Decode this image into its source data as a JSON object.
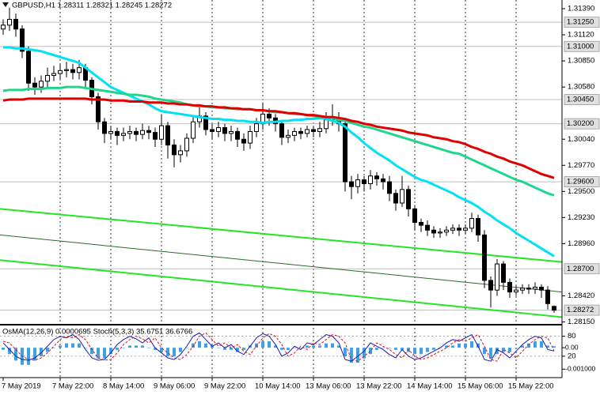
{
  "chart_data": [
    {
      "type": "candlestick",
      "title": "GBPUSD,H1  1.28311 1.28321 1.28245 1.28272",
      "categories": [
        "7 May 2019",
        null,
        null,
        null,
        null,
        null,
        null,
        null,
        null,
        "7 May 22:00",
        null,
        null,
        null,
        null,
        null,
        null,
        null,
        "8 May 14:00",
        null,
        null,
        null,
        null,
        null,
        null,
        null,
        "9 May 06:00",
        null,
        null,
        null,
        null,
        null,
        null,
        null,
        "9 May 22:00",
        null,
        null,
        null,
        null,
        null,
        null,
        null,
        "10 May 14:00",
        null,
        null,
        null,
        null,
        null,
        null,
        null,
        "13 May 06:00",
        null,
        null,
        null,
        null,
        null,
        null,
        null,
        "13 May 22:00",
        null,
        null,
        null,
        null,
        null,
        null,
        null,
        "14 May 14:00",
        null,
        null,
        null,
        null,
        null,
        null,
        null,
        "15 May 06:00",
        null,
        null,
        null,
        null,
        null,
        null,
        null,
        "15 May 22:00",
        null,
        null,
        null,
        null,
        null,
        null
      ],
      "open": [
        1.3118,
        1.3122,
        1.3128,
        1.3118,
        1.3095,
        1.3062,
        1.3058,
        1.3064,
        1.307,
        1.3072,
        1.3075,
        1.3076,
        1.3073,
        1.3078,
        1.3065,
        1.3048,
        1.3022,
        1.301,
        1.3012,
        1.3008,
        1.301,
        1.3012,
        1.3009,
        1.3013,
        1.3011,
        1.3004,
        1.3018,
        1.2998,
        1.2988,
        1.2992,
        1.3005,
        1.3022,
        1.3028,
        1.3014,
        1.3012,
        1.3016,
        1.301,
        1.3012,
        1.3004,
        1.3,
        1.3012,
        1.302,
        1.303,
        1.3026,
        1.302,
        1.3006,
        1.3008,
        1.3012,
        1.301,
        1.3014,
        1.3012,
        1.3015,
        1.3024,
        1.3026,
        1.302,
        1.296,
        1.2955,
        1.2962,
        1.2958,
        1.2966,
        1.2963,
        1.296,
        1.2948,
        1.2938,
        1.2952,
        1.2932,
        1.2918,
        1.2915,
        1.291,
        1.2907,
        1.2908,
        1.291,
        1.2912,
        1.291,
        1.2912,
        1.2922,
        1.2905,
        1.2858,
        1.2848,
        1.2875,
        1.2856,
        1.2846,
        1.2848,
        1.285,
        1.2849,
        1.2851,
        1.2848,
        1.28311
      ],
      "high": [
        1.3128,
        1.314,
        1.3134,
        1.3122,
        1.31,
        1.3068,
        1.307,
        1.3078,
        1.308,
        1.3082,
        1.3084,
        1.3082,
        1.3086,
        1.3082,
        1.3068,
        1.3052,
        1.3026,
        1.3018,
        1.3016,
        1.3016,
        1.3018,
        1.3016,
        1.302,
        1.3018,
        1.3016,
        1.303,
        1.3022,
        1.3004,
        1.2998,
        1.301,
        1.3028,
        1.3038,
        1.3032,
        1.302,
        1.3022,
        1.302,
        1.3018,
        1.3016,
        1.301,
        1.3018,
        1.3026,
        1.3042,
        1.3036,
        1.303,
        1.3024,
        1.3014,
        1.3016,
        1.3016,
        1.3018,
        1.3018,
        1.3022,
        1.3032,
        1.304,
        1.3032,
        1.3024,
        1.2966,
        1.2968,
        1.2966,
        1.2972,
        1.297,
        1.2968,
        1.2966,
        1.2952,
        1.2966,
        1.2956,
        1.2936,
        1.2922,
        1.292,
        1.2914,
        1.2912,
        1.2914,
        1.2916,
        1.2916,
        1.2916,
        1.2928,
        1.2926,
        1.291,
        1.2862,
        1.288,
        1.2878,
        1.286,
        1.2852,
        1.2854,
        1.2854,
        1.2856,
        1.2854,
        1.2852,
        1.28321
      ],
      "low": [
        1.3112,
        1.3116,
        1.311,
        1.3088,
        1.3054,
        1.305,
        1.3052,
        1.3058,
        1.3064,
        1.3066,
        1.3068,
        1.3066,
        1.3066,
        1.3058,
        1.304,
        1.3014,
        1.3,
        1.3004,
        1.2998,
        1.3002,
        1.3004,
        1.3002,
        1.3004,
        1.3004,
        1.2996,
        1.2998,
        1.2984,
        1.2975,
        1.298,
        1.2986,
        1.3,
        1.3016,
        1.3008,
        1.3004,
        1.3006,
        1.3002,
        1.3002,
        1.2996,
        1.2992,
        1.2994,
        1.3006,
        1.3014,
        1.3018,
        1.3012,
        1.2998,
        1.3,
        1.3002,
        1.3004,
        1.3006,
        1.3006,
        1.3006,
        1.301,
        1.3018,
        1.3012,
        1.295,
        1.2942,
        1.2948,
        1.295,
        1.2952,
        1.2956,
        1.2952,
        1.294,
        1.293,
        1.2934,
        1.2924,
        1.291,
        1.2908,
        1.2904,
        1.2902,
        1.2902,
        1.2904,
        1.2906,
        1.2904,
        1.2906,
        1.2908,
        1.2898,
        1.285,
        1.283,
        1.2842,
        1.2848,
        1.284,
        1.2842,
        1.2844,
        1.2844,
        1.2844,
        1.284,
        1.2828,
        1.28245
      ],
      "close": [
        1.3122,
        1.3128,
        1.3118,
        1.3095,
        1.3062,
        1.3058,
        1.3064,
        1.307,
        1.3072,
        1.3075,
        1.3076,
        1.3073,
        1.3078,
        1.3065,
        1.3048,
        1.3022,
        1.301,
        1.3012,
        1.3008,
        1.301,
        1.3012,
        1.3009,
        1.3013,
        1.3011,
        1.3004,
        1.3018,
        1.2998,
        1.2988,
        1.2992,
        1.3005,
        1.3022,
        1.3028,
        1.3014,
        1.3012,
        1.3016,
        1.301,
        1.3012,
        1.3004,
        1.3,
        1.3012,
        1.302,
        1.303,
        1.3026,
        1.302,
        1.3006,
        1.3008,
        1.3012,
        1.301,
        1.3014,
        1.3012,
        1.3015,
        1.3024,
        1.3026,
        1.302,
        1.296,
        1.2955,
        1.2962,
        1.2958,
        1.2966,
        1.2963,
        1.296,
        1.2948,
        1.2938,
        1.2952,
        1.2932,
        1.2918,
        1.2915,
        1.291,
        1.2907,
        1.2908,
        1.291,
        1.2912,
        1.291,
        1.2912,
        1.2922,
        1.2905,
        1.2858,
        1.2848,
        1.2875,
        1.2856,
        1.2846,
        1.2848,
        1.285,
        1.2849,
        1.2851,
        1.2848,
        1.2834,
        1.28272
      ],
      "series": [
        {
          "color": "#00e1f5",
          "values": [
            1.3099,
            1.3099,
            1.3098,
            1.3098,
            1.3097,
            1.3096,
            1.3095,
            1.3093,
            1.3091,
            1.3089,
            1.3087,
            1.3085,
            1.3083,
            1.3078,
            1.3073,
            1.3068,
            1.3063,
            1.3058,
            1.3055,
            1.3052,
            1.3049,
            1.3046,
            1.3043,
            1.304,
            1.3036,
            1.3033,
            1.3032,
            1.3031,
            1.303,
            1.3029,
            1.3028,
            1.3027,
            1.3026,
            1.3025,
            1.3025,
            1.3024,
            1.3024,
            1.3023,
            1.3023,
            1.3022,
            1.3022,
            1.3021,
            1.3022,
            1.3022,
            1.3023,
            1.3023,
            1.3024,
            1.3024,
            1.3025,
            1.3025,
            1.3026,
            1.3025,
            1.3023,
            1.3021,
            1.3017,
            1.3011,
            1.3006,
            1.3,
            1.2995,
            1.299,
            1.2986,
            1.2982,
            1.2977,
            1.2973,
            1.2969,
            1.2965,
            1.2962,
            1.296,
            1.2957,
            1.2954,
            1.2951,
            1.2948,
            1.2944,
            1.2941,
            1.2938,
            1.2934,
            1.2929,
            1.2925,
            1.292,
            1.2916,
            1.2912,
            1.2907,
            1.2903,
            1.2899,
            1.2895,
            1.2891,
            1.2887,
            1.2883
          ]
        },
        {
          "color": "#1ed68e",
          "values": [
            1.3054,
            1.3055,
            1.3055,
            1.3055,
            1.3056,
            1.3056,
            1.3056,
            1.3057,
            1.3057,
            1.3057,
            1.3058,
            1.3058,
            1.3058,
            1.3057,
            1.3056,
            1.3055,
            1.3054,
            1.3053,
            1.3052,
            1.3051,
            1.305,
            1.305,
            1.3049,
            1.3048,
            1.3046,
            1.3045,
            1.3044,
            1.3043,
            1.3042,
            1.304,
            1.3039,
            1.3038,
            1.3038,
            1.3037,
            1.3037,
            1.3036,
            1.3036,
            1.3035,
            1.3035,
            1.3035,
            1.3034,
            1.3034,
            1.3033,
            1.3032,
            1.3032,
            1.3031,
            1.303,
            1.303,
            1.3029,
            1.3028,
            1.3027,
            1.3027,
            1.3026,
            1.3024,
            1.3023,
            1.3021,
            1.3019,
            1.3017,
            1.3016,
            1.3014,
            1.3012,
            1.301,
            1.3008,
            1.3006,
            1.3004,
            1.3002,
            1.3,
            1.2998,
            1.2996,
            1.2994,
            1.2992,
            1.299,
            1.2989,
            1.2986,
            1.2983,
            1.298,
            1.2977,
            1.2974,
            1.2971,
            1.2968,
            1.2965,
            1.2962,
            1.296,
            1.2957,
            1.2954,
            1.2951,
            1.2948,
            1.2946
          ]
        },
        {
          "color": "#e00000",
          "values": [
            1.3044,
            1.3045,
            1.3045,
            1.3045,
            1.3046,
            1.3046,
            1.3046,
            1.3046,
            1.3046,
            1.3046,
            1.3046,
            1.3046,
            1.3046,
            1.3046,
            1.3045,
            1.3045,
            1.3045,
            1.3044,
            1.3044,
            1.3044,
            1.3043,
            1.3043,
            1.3043,
            1.3042,
            1.3042,
            1.3042,
            1.3041,
            1.3041,
            1.304,
            1.304,
            1.3039,
            1.3039,
            1.3038,
            1.3038,
            1.3037,
            1.3037,
            1.3036,
            1.3036,
            1.3035,
            1.3035,
            1.3034,
            1.3034,
            1.3033,
            1.3033,
            1.3032,
            1.3031,
            1.3031,
            1.303,
            1.3029,
            1.3029,
            1.3028,
            1.3027,
            1.3027,
            1.3026,
            1.3025,
            1.3023,
            1.3022,
            1.302,
            1.3019,
            1.3017,
            1.3016,
            1.3015,
            1.3014,
            1.3013,
            1.3011,
            1.301,
            1.3009,
            1.3008,
            1.3006,
            1.3005,
            1.3004,
            1.3002,
            1.3001,
            1.2999,
            1.2996,
            1.2994,
            1.2991,
            1.2989,
            1.2986,
            1.2984,
            1.2981,
            1.2979,
            1.2977,
            1.2974,
            1.2971,
            1.2968,
            1.2966,
            1.2964
          ]
        }
      ],
      "trendlines": [
        {
          "color": "#22e622",
          "values": [
            1.2932,
            1.2877
          ]
        },
        {
          "color": "#2a6a2a",
          "values": [
            1.2905,
            1.2846
          ]
        },
        {
          "color": "#22e622",
          "values": [
            1.2879,
            1.282
          ]
        }
      ],
      "levels": [
        {
          "value": 1.3125,
          "label": "1.31250"
        },
        {
          "value": 1.31,
          "label": "1.31000"
        },
        {
          "value": 1.3045,
          "label": "1.30450"
        },
        {
          "value": 1.302,
          "label": "1.30200"
        },
        {
          "value": 1.296,
          "label": "1.29600"
        },
        {
          "value": 1.287,
          "label": "1.28700"
        },
        1.28272
      ],
      "ylim": [
        1.2813,
        1.3148
      ],
      "yticks": [
        {
          "value": 1.3139,
          "label": "1.31390"
        },
        {
          "value": 1.3112,
          "label": "1.31120"
        },
        {
          "value": 1.3085,
          "label": "1.30850"
        },
        {
          "value": 1.3058,
          "label": "1.30580"
        },
        {
          "value": 1.3004,
          "label": "1.30040"
        },
        {
          "value": 1.2977,
          "label": "1.29770"
        },
        {
          "value": 1.295,
          "label": "1.29500"
        },
        {
          "value": 1.2923,
          "label": "1.29230"
        },
        {
          "value": 1.2896,
          "label": "1.28960"
        },
        {
          "value": 1.2842,
          "label": "1.28420"
        },
        {
          "value": 1.2815,
          "label": "1.28150"
        }
      ],
      "grid": true
    },
    {
      "type": "oscillator",
      "title": "OsMA(12,26,9) 0.0000695  Stoch(5,3,3) 35.6751 36.6766",
      "series": [
        {
          "type": "bar",
          "color": "#3aa3e8",
          "values": [
            -0.0001,
            -0.0003,
            -0.0006,
            -0.0008,
            -0.0008,
            -0.0006,
            -0.0004,
            -0.0002,
            0,
            0.0001,
            0.0002,
            0.0002,
            0.0002,
            0,
            -0.0003,
            -0.0005,
            -0.0005,
            -0.0003,
            -0.0001,
            0,
            0.0001,
            0.0001,
            0.0001,
            0,
            -0.0001,
            -0.0002,
            -0.0004,
            -0.0004,
            -0.0002,
            0,
            0.0002,
            0.0003,
            0.0002,
            0.0001,
            0,
            -0.0001,
            -0.0001,
            -0.0002,
            -0.0001,
            0.0001,
            0.0002,
            0.0003,
            0.0003,
            0.0001,
            -0.0001,
            -0.0001,
            0,
            0,
            0.0001,
            0.0001,
            0.0001,
            0.0002,
            0.0002,
            0.0001,
            -0.0004,
            -0.0007,
            -0.0007,
            -0.0005,
            -0.0003,
            -0.0001,
            0,
            0,
            -0.0001,
            -0.0001,
            -0.0002,
            -0.0003,
            -0.0003,
            -0.0002,
            -0.0001,
            0,
            0.0001,
            0.0001,
            0.0002,
            0.0002,
            0.0003,
            0.0002,
            -0.0003,
            -0.0005,
            -0.0003,
            -0.0002,
            -0.0002,
            0,
            0.0001,
            0.0002,
            0.0003,
            0.0003,
            0.0001,
            6.95e-05
          ]
        },
        {
          "type": "line",
          "axis": "y2",
          "color": "#1a1ab8",
          "values": [
            60,
            40,
            20,
            10,
            8,
            15,
            30,
            50,
            70,
            80,
            75,
            85,
            70,
            40,
            15,
            8,
            10,
            30,
            55,
            70,
            80,
            72,
            60,
            75,
            45,
            30,
            15,
            10,
            25,
            50,
            80,
            90,
            70,
            50,
            60,
            45,
            55,
            35,
            25,
            50,
            75,
            88,
            80,
            55,
            20,
            30,
            50,
            40,
            60,
            55,
            70,
            85,
            80,
            60,
            10,
            5,
            20,
            35,
            60,
            50,
            40,
            25,
            15,
            40,
            20,
            10,
            15,
            25,
            35,
            45,
            60,
            70,
            65,
            75,
            85,
            50,
            10,
            5,
            40,
            30,
            15,
            35,
            55,
            70,
            80,
            75,
            40,
            35.6751
          ]
        },
        {
          "type": "line",
          "axis": "y2",
          "dashed": true,
          "color": "#e01010",
          "values": [
            65,
            60,
            40,
            20,
            10,
            8,
            15,
            30,
            50,
            70,
            80,
            75,
            85,
            70,
            40,
            15,
            8,
            10,
            30,
            55,
            70,
            80,
            72,
            60,
            75,
            45,
            30,
            15,
            10,
            25,
            50,
            80,
            90,
            70,
            50,
            60,
            45,
            55,
            35,
            25,
            50,
            75,
            88,
            80,
            55,
            20,
            30,
            50,
            40,
            60,
            55,
            70,
            85,
            80,
            60,
            10,
            5,
            20,
            35,
            60,
            50,
            40,
            25,
            15,
            40,
            20,
            10,
            15,
            25,
            35,
            45,
            60,
            70,
            65,
            75,
            85,
            50,
            10,
            5,
            40,
            30,
            15,
            35,
            55,
            70,
            80,
            75,
            36.6766
          ]
        }
      ],
      "ylim": [
        -0.00136,
        0.001
      ],
      "yticks": [
        {
          "value": 0,
          "label": "0.00"
        },
        {
          "value": -0.001,
          "label": "-0.001000"
        }
      ],
      "y2lim": [
        -42,
        110
      ],
      "y2ticks": [
        20,
        80
      ]
    }
  ]
}
